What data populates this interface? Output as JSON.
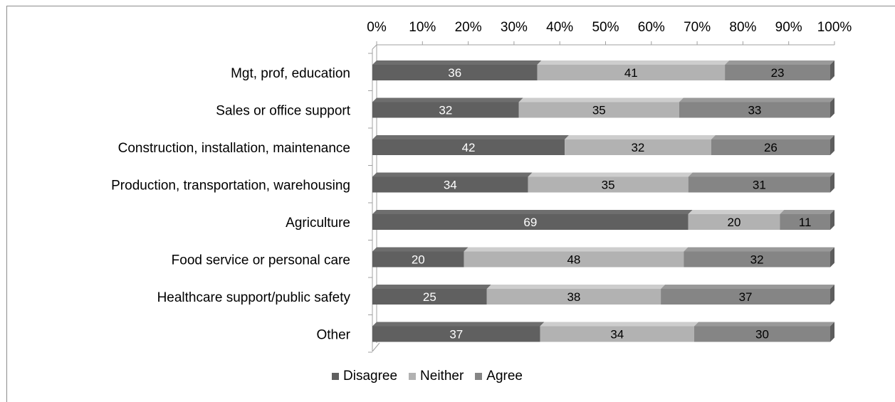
{
  "chart_data": {
    "type": "bar",
    "orientation": "horizontal",
    "stacked": "percent",
    "categories": [
      "Mgt, prof, education",
      "Sales or office support",
      "Construction, installation, maintenance",
      "Production, transportation, warehousing",
      "Agriculture",
      "Food service or personal care",
      "Healthcare support/public safety",
      "Other"
    ],
    "series": [
      {
        "name": "Disagree",
        "color": "#606060",
        "label_color": "#ffffff",
        "values": [
          36,
          32,
          42,
          34,
          69,
          20,
          25,
          37
        ]
      },
      {
        "name": "Neither",
        "color": "#b2b2b2",
        "label_color": "#000000",
        "values": [
          41,
          35,
          32,
          35,
          20,
          48,
          38,
          34
        ]
      },
      {
        "name": "Agree",
        "color": "#858585",
        "label_color": "#000000",
        "values": [
          23,
          33,
          26,
          31,
          11,
          32,
          37,
          30
        ]
      }
    ],
    "xticks": [
      "0%",
      "10%",
      "20%",
      "30%",
      "40%",
      "50%",
      "60%",
      "70%",
      "80%",
      "90%",
      "100%"
    ],
    "xlim": [
      0,
      100
    ],
    "grid": false,
    "legend_position": "bottom",
    "title": "",
    "xlabel": "",
    "ylabel": ""
  }
}
